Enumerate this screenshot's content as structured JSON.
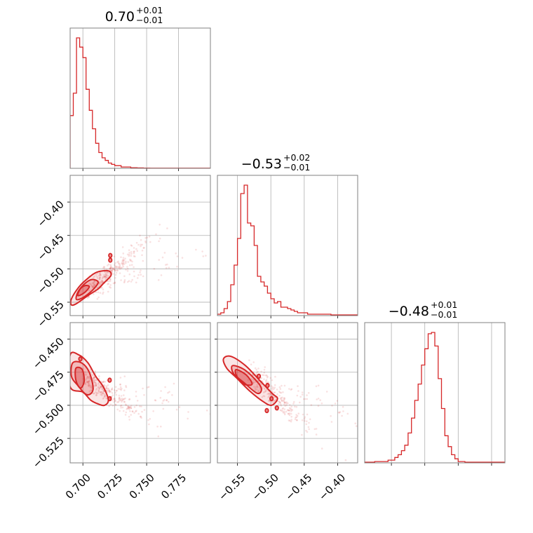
{
  "chart_data": {
    "type": "corner",
    "color": "#d62728",
    "panels": [
      {
        "id": "hist-a",
        "type": "histogram",
        "title": {
          "value": "0.70",
          "plus": "+0.01",
          "minus": "−0.01"
        },
        "xlim": [
          0.69,
          0.8
        ],
        "xticks": [
          0.7,
          0.725,
          0.75,
          0.775
        ],
        "bin_width": 0.0025,
        "bin_start": 0.69,
        "counts": [
          40,
          57,
          99,
          92,
          84,
          60,
          44,
          30,
          19,
          12,
          8,
          6,
          4,
          3,
          2,
          2,
          1,
          1,
          1,
          0.5,
          0.5,
          0.3,
          0.3,
          0.2,
          0.2,
          0.1,
          0.1,
          0.1,
          0.1,
          0.1,
          0.1,
          0.1,
          0.1,
          0.1,
          0.1,
          0.1,
          0.1,
          0.1,
          0.1,
          0.1,
          0.1,
          0.1,
          0.1,
          0.1
        ]
      },
      {
        "id": "hist-b",
        "type": "histogram",
        "title": {
          "value": "−0.53",
          "plus": "+0.02",
          "minus": "−0.01"
        },
        "xlim": [
          -0.58,
          -0.37
        ],
        "xticks": [
          -0.55,
          -0.5,
          -0.45,
          -0.4
        ],
        "bin_width": 0.005,
        "bin_start": -0.58,
        "counts": [
          1,
          2,
          5,
          10,
          22,
          36,
          55,
          87,
          93,
          66,
          64,
          50,
          28,
          24,
          21,
          16,
          12,
          9,
          10,
          6,
          6,
          5,
          4,
          3,
          2,
          2,
          2,
          1,
          1,
          1,
          1,
          1,
          1,
          1,
          0.5,
          0.5,
          0.5,
          0.5,
          0.5,
          0.5,
          0.5,
          0.5
        ]
      },
      {
        "id": "hist-c",
        "type": "histogram",
        "title": {
          "value": "−0.48",
          "plus": "+0.01",
          "minus": "−0.01"
        },
        "xlim": [
          -0.545,
          -0.44
        ],
        "xticks": [
          -0.525,
          -0.5,
          -0.475,
          -0.45
        ],
        "bin_width": 0.0025,
        "bin_start": -0.545,
        "counts": [
          0.5,
          0.5,
          0.5,
          1,
          1,
          1,
          1,
          2,
          2,
          4,
          6,
          9,
          13,
          22,
          33,
          46,
          58,
          72,
          84,
          95,
          96,
          86,
          62,
          40,
          20,
          12,
          6,
          3,
          1,
          1,
          0.5,
          0.5,
          0.5,
          0.5,
          0.5,
          0.5,
          0.5,
          0.5,
          0.5,
          0.5,
          0.5,
          0.5
        ]
      },
      {
        "id": "scatter-ab",
        "type": "density",
        "xlim": [
          0.69,
          0.8
        ],
        "ylim": [
          -0.57,
          -0.36
        ],
        "xticks": [
          0.7,
          0.725,
          0.75,
          0.775
        ],
        "yticks": [
          -0.55,
          -0.5,
          -0.45,
          -0.4
        ],
        "yticklabels": [
          "−0.55",
          "−0.50",
          "−0.45",
          "−0.40"
        ],
        "center": [
          0.7025,
          -0.535
        ],
        "contours": [
          {
            "level": 1,
            "points": [
              [
                0.691,
                -0.554
              ],
              [
                0.695,
                -0.552
              ],
              [
                0.704,
                -0.54
              ],
              [
                0.712,
                -0.53
              ],
              [
                0.716,
                -0.522
              ],
              [
                0.722,
                -0.51
              ],
              [
                0.72,
                -0.503
              ],
              [
                0.711,
                -0.505
              ],
              [
                0.704,
                -0.514
              ],
              [
                0.697,
                -0.527
              ],
              [
                0.691,
                -0.545
              ]
            ]
          },
          {
            "level": 2,
            "points": [
              [
                0.695,
                -0.546
              ],
              [
                0.701,
                -0.542
              ],
              [
                0.708,
                -0.531
              ],
              [
                0.712,
                -0.52
              ],
              [
                0.707,
                -0.516
              ],
              [
                0.701,
                -0.523
              ],
              [
                0.696,
                -0.535
              ]
            ]
          },
          {
            "level": 3,
            "points": [
              [
                0.696,
                -0.54
              ],
              [
                0.701,
                -0.536
              ],
              [
                0.705,
                -0.527
              ],
              [
                0.702,
                -0.525
              ],
              [
                0.698,
                -0.53
              ]
            ]
          }
        ],
        "islands": [
          [
            0.7215,
            -0.487
          ],
          [
            0.7215,
            -0.48
          ]
        ]
      },
      {
        "id": "scatter-ac",
        "type": "density",
        "xlim": [
          0.69,
          0.8
        ],
        "ylim": [
          -0.5435,
          -0.4375
        ],
        "xticks": [
          0.7,
          0.725,
          0.75,
          0.775
        ],
        "xticklabels": [
          "0.700",
          "0.725",
          "0.750",
          "0.775"
        ],
        "yticks": [
          -0.525,
          -0.5,
          -0.475,
          -0.45
        ],
        "yticklabels": [
          "−0.525",
          "−0.500",
          "−0.475",
          "−0.450"
        ],
        "center": [
          0.698,
          -0.477
        ],
        "contours": [
          {
            "level": 1,
            "points": [
              [
                0.69,
                -0.462
              ],
              [
                0.697,
                -0.462
              ],
              [
                0.704,
                -0.468
              ],
              [
                0.71,
                -0.478
              ],
              [
                0.716,
                -0.486
              ],
              [
                0.72,
                -0.496
              ],
              [
                0.717,
                -0.5
              ],
              [
                0.712,
                -0.499
              ],
              [
                0.706,
                -0.496
              ],
              [
                0.7,
                -0.49
              ],
              [
                0.69,
                -0.486
              ]
            ]
          },
          {
            "level": 2,
            "points": [
              [
                0.692,
                -0.468
              ],
              [
                0.699,
                -0.468
              ],
              [
                0.705,
                -0.475
              ],
              [
                0.708,
                -0.488
              ],
              [
                0.703,
                -0.492
              ],
              [
                0.696,
                -0.485
              ],
              [
                0.691,
                -0.478
              ]
            ]
          },
          {
            "level": 3,
            "points": [
              [
                0.6945,
                -0.472
              ],
              [
                0.6995,
                -0.473
              ],
              [
                0.701,
                -0.482
              ],
              [
                0.698,
                -0.487
              ],
              [
                0.6945,
                -0.481
              ]
            ]
          }
        ],
        "islands": [
          [
            0.721,
            -0.481
          ],
          [
            0.721,
            -0.495
          ],
          [
            0.698,
            -0.465
          ]
        ]
      },
      {
        "id": "scatter-bc",
        "type": "density",
        "xlim": [
          -0.58,
          -0.37
        ],
        "ylim": [
          -0.5435,
          -0.4375
        ],
        "xticks": [
          -0.55,
          -0.5,
          -0.45,
          -0.4
        ],
        "xticklabels": [
          "−0.55",
          "−0.50",
          "−0.45",
          "−0.40"
        ],
        "yticks": [
          -0.525,
          -0.5,
          -0.475,
          -0.45
        ],
        "center": [
          -0.535,
          -0.475
        ],
        "contours": [
          {
            "level": 1,
            "points": [
              [
                -0.571,
                -0.465
              ],
              [
                -0.56,
                -0.463
              ],
              [
                -0.538,
                -0.47
              ],
              [
                -0.517,
                -0.481
              ],
              [
                -0.498,
                -0.491
              ],
              [
                -0.49,
                -0.495
              ],
              [
                -0.499,
                -0.5
              ],
              [
                -0.512,
                -0.497
              ],
              [
                -0.532,
                -0.489
              ],
              [
                -0.552,
                -0.479
              ],
              [
                -0.566,
                -0.472
              ]
            ]
          },
          {
            "level": 2,
            "points": [
              [
                -0.557,
                -0.47
              ],
              [
                -0.537,
                -0.474
              ],
              [
                -0.515,
                -0.486
              ],
              [
                -0.52,
                -0.491
              ],
              [
                -0.54,
                -0.483
              ],
              [
                -0.556,
                -0.476
              ]
            ]
          },
          {
            "level": 3,
            "points": [
              [
                -0.552,
                -0.473
              ],
              [
                -0.537,
                -0.477
              ],
              [
                -0.528,
                -0.484
              ],
              [
                -0.54,
                -0.484
              ],
              [
                -0.551,
                -0.478
              ]
            ]
          }
        ],
        "islands": [
          [
            -0.499,
            -0.495
          ],
          [
            -0.491,
            -0.502
          ],
          [
            -0.506,
            -0.504
          ],
          [
            -0.505,
            -0.485
          ],
          [
            -0.518,
            -0.478
          ]
        ]
      }
    ]
  }
}
